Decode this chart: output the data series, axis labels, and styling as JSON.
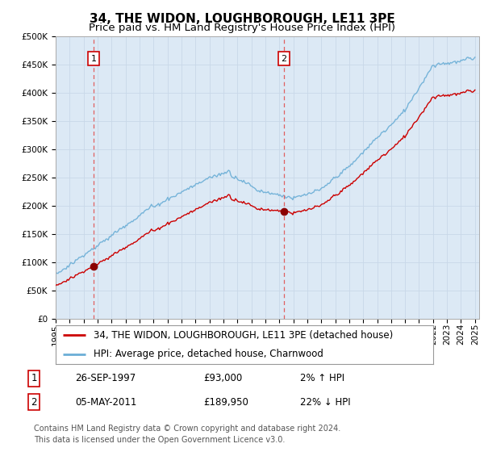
{
  "title": "34, THE WIDON, LOUGHBOROUGH, LE11 3PE",
  "subtitle": "Price paid vs. HM Land Registry's House Price Index (HPI)",
  "ylim": [
    0,
    500000
  ],
  "yticks": [
    0,
    50000,
    100000,
    150000,
    200000,
    250000,
    300000,
    350000,
    400000,
    450000,
    500000
  ],
  "ytick_labels": [
    "£0",
    "£50K",
    "£100K",
    "£150K",
    "£200K",
    "£250K",
    "£300K",
    "£350K",
    "£400K",
    "£450K",
    "£500K"
  ],
  "hpi_color": "#6baed6",
  "price_color": "#cc0000",
  "marker_color": "#8b0000",
  "vline_color": "#e06060",
  "grid_color": "#c8d8e8",
  "chart_bg_color": "#dce9f5",
  "background_color": "#ffffff",
  "sale1_year": 1997.73,
  "sale1_price": 93000,
  "sale2_year": 2011.34,
  "sale2_price": 189950,
  "legend_label1": "34, THE WIDON, LOUGHBOROUGH, LE11 3PE (detached house)",
  "legend_label2": "HPI: Average price, detached house, Charnwood",
  "annotation1_label": "1",
  "annotation2_label": "2",
  "table_row1": [
    "1",
    "26-SEP-1997",
    "£93,000",
    "2% ↑ HPI"
  ],
  "table_row2": [
    "2",
    "05-MAY-2011",
    "£189,950",
    "22% ↓ HPI"
  ],
  "footnote": "Contains HM Land Registry data © Crown copyright and database right 2024.\nThis data is licensed under the Open Government Licence v3.0.",
  "title_fontsize": 11,
  "subtitle_fontsize": 9.5,
  "tick_fontsize": 7.5,
  "legend_fontsize": 8.5,
  "table_fontsize": 8.5,
  "footnote_fontsize": 7
}
